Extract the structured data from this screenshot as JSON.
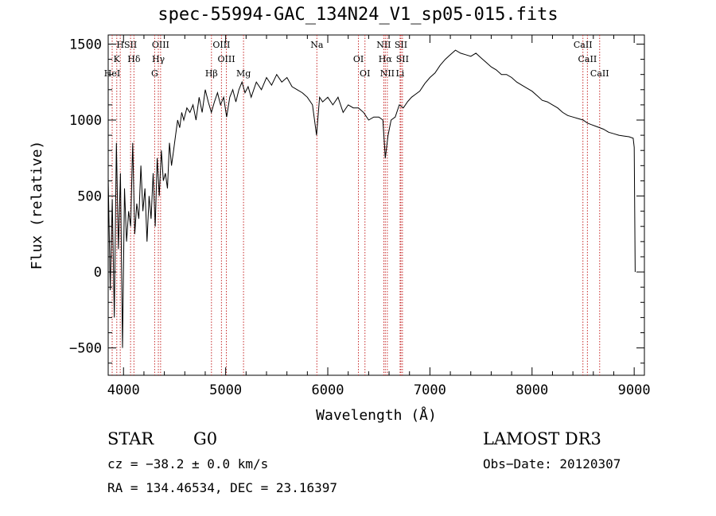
{
  "chart_data": {
    "type": "line",
    "title": "spec-55994-GAC_134N24_V1_sp05-015.fits",
    "xlabel": "Wavelength (Å)",
    "ylabel": "Flux (relative)",
    "xlim": [
      3850,
      9100
    ],
    "ylim": [
      -680,
      1560
    ],
    "xticks": [
      4000,
      5000,
      6000,
      7000,
      8000,
      9000
    ],
    "yticks": [
      -500,
      0,
      500,
      1000,
      1500
    ],
    "series": [
      {
        "name": "spectrum",
        "x": [
          3850,
          3870,
          3890,
          3910,
          3930,
          3950,
          3970,
          3990,
          4010,
          4030,
          4050,
          4070,
          4090,
          4110,
          4130,
          4150,
          4170,
          4190,
          4210,
          4230,
          4250,
          4270,
          4290,
          4310,
          4330,
          4350,
          4370,
          4390,
          4410,
          4430,
          4450,
          4470,
          4490,
          4510,
          4530,
          4550,
          4570,
          4590,
          4620,
          4650,
          4680,
          4710,
          4740,
          4770,
          4800,
          4830,
          4860,
          4890,
          4920,
          4950,
          4980,
          5010,
          5040,
          5070,
          5100,
          5130,
          5160,
          5190,
          5220,
          5250,
          5300,
          5350,
          5400,
          5450,
          5500,
          5550,
          5600,
          5650,
          5700,
          5750,
          5800,
          5850,
          5890,
          5920,
          5950,
          6000,
          6050,
          6100,
          6150,
          6200,
          6250,
          6300,
          6350,
          6400,
          6450,
          6500,
          6540,
          6563,
          6590,
          6620,
          6660,
          6700,
          6740,
          6780,
          6820,
          6860,
          6900,
          6950,
          7000,
          7050,
          7100,
          7150,
          7200,
          7250,
          7300,
          7350,
          7400,
          7450,
          7500,
          7550,
          7600,
          7650,
          7700,
          7750,
          7800,
          7850,
          7900,
          7950,
          8000,
          8050,
          8100,
          8150,
          8200,
          8250,
          8300,
          8350,
          8400,
          8450,
          8500,
          8542,
          8580,
          8620,
          8662,
          8700,
          8750,
          8800,
          8850,
          8900,
          8950,
          8990,
          9000,
          9010
        ],
        "values": [
          620,
          -120,
          480,
          -300,
          850,
          150,
          650,
          -500,
          550,
          200,
          400,
          300,
          850,
          250,
          450,
          350,
          700,
          400,
          550,
          200,
          500,
          350,
          650,
          300,
          750,
          500,
          800,
          600,
          650,
          550,
          850,
          700,
          800,
          900,
          1000,
          950,
          1050,
          1000,
          1080,
          1050,
          1100,
          1000,
          1150,
          1050,
          1200,
          1120,
          1050,
          1120,
          1180,
          1100,
          1150,
          1020,
          1150,
          1200,
          1120,
          1200,
          1250,
          1180,
          1220,
          1150,
          1250,
          1200,
          1280,
          1230,
          1300,
          1250,
          1280,
          1220,
          1200,
          1180,
          1150,
          1100,
          900,
          1150,
          1120,
          1150,
          1100,
          1150,
          1050,
          1100,
          1080,
          1080,
          1050,
          1000,
          1020,
          1020,
          1000,
          750,
          900,
          1000,
          1020,
          1100,
          1080,
          1120,
          1150,
          1170,
          1190,
          1240,
          1280,
          1310,
          1360,
          1400,
          1430,
          1460,
          1440,
          1430,
          1420,
          1440,
          1410,
          1380,
          1350,
          1330,
          1300,
          1300,
          1280,
          1250,
          1230,
          1210,
          1190,
          1160,
          1130,
          1120,
          1100,
          1080,
          1050,
          1030,
          1020,
          1010,
          1000,
          980,
          970,
          960,
          950,
          940,
          920,
          910,
          900,
          895,
          890,
          880,
          820,
          0
        ]
      }
    ],
    "lines": [
      {
        "label": "H",
        "wave": 3968
      },
      {
        "label": "K",
        "wave": 3934
      },
      {
        "label": "HeI",
        "wave": 3889
      },
      {
        "label": "SII",
        "wave": 4069
      },
      {
        "label": "Hδ",
        "wave": 4102
      },
      {
        "label": "G",
        "wave": 4305
      },
      {
        "label": "OIII",
        "wave": 4363
      },
      {
        "label": "Hγ",
        "wave": 4341
      },
      {
        "label": "Hβ",
        "wave": 4861
      },
      {
        "label": "OIII",
        "wave": 4959
      },
      {
        "label": "OIII",
        "wave": 5007
      },
      {
        "label": "Mg",
        "wave": 5175
      },
      {
        "label": "Na",
        "wave": 5893
      },
      {
        "label": "OI",
        "wave": 6300
      },
      {
        "label": "OI",
        "wave": 6364
      },
      {
        "label": "NII",
        "wave": 6548
      },
      {
        "label": "Hα",
        "wave": 6563
      },
      {
        "label": "NII",
        "wave": 6583
      },
      {
        "label": "SII",
        "wave": 6716
      },
      {
        "label": "SII",
        "wave": 6731
      },
      {
        "label": "Li",
        "wave": 6708
      },
      {
        "label": "CaII",
        "wave": 8498
      },
      {
        "label": "CaII",
        "wave": 8542
      },
      {
        "label": "CaII",
        "wave": 8662
      }
    ]
  },
  "info": {
    "class_label": "STAR",
    "subclass": "G0",
    "survey": "LAMOST DR3",
    "cz": "cz = −38.2 ± 0.0 km/s",
    "obs_date": "Obs−Date: 20120307",
    "coords": "RA = 134.46534, DEC =  23.16397"
  },
  "colors": {
    "line_marker": "#c62828",
    "spectrum": "#000000"
  }
}
